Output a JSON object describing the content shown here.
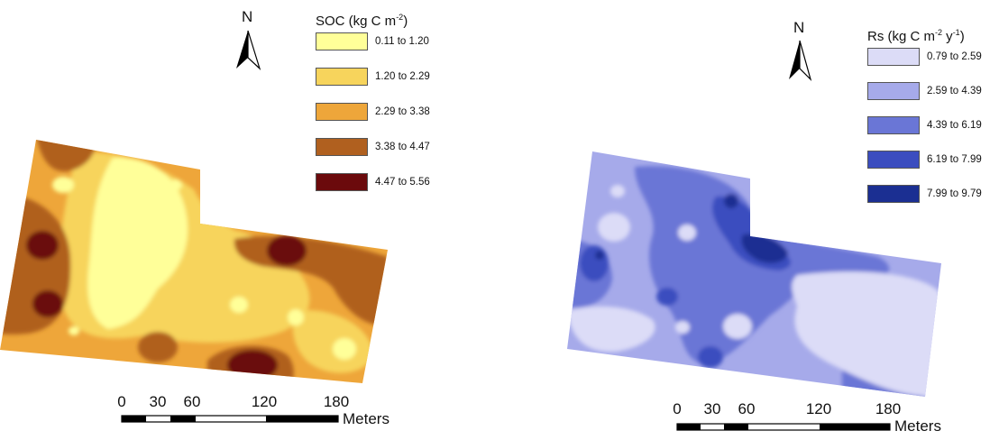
{
  "maps": [
    {
      "north_label": "N",
      "legend": {
        "title_main": "SOC (kg C m",
        "title_sup1": "-2",
        "title_mid": "",
        "title_sup2": "",
        "title_end": ")",
        "items": [
          {
            "label": "0.11 to 1.20",
            "color": "#ffff99"
          },
          {
            "label": "1.20 to 2.29",
            "color": "#f7d45c"
          },
          {
            "label": "2.29 to 3.38",
            "color": "#eea63a"
          },
          {
            "label": "3.38 to 4.47",
            "color": "#b0601f"
          },
          {
            "label": "4.47 to 5.56",
            "color": "#6b0a0c"
          }
        ]
      },
      "scale_bar": {
        "ticks": [
          "0",
          "30",
          "60",
          "120",
          "180"
        ],
        "unit": "Meters"
      }
    },
    {
      "north_label": "N",
      "legend": {
        "title_main": "Rs (kg C m",
        "title_sup1": "-2",
        "title_mid": " y",
        "title_sup2": "-1",
        "title_end": ")",
        "items": [
          {
            "label": "0.79 to 2.59",
            "color": "#dcdcf7"
          },
          {
            "label": "2.59 to 4.39",
            "color": "#a6aaea"
          },
          {
            "label": "4.39 to 6.19",
            "color": "#6a76d6"
          },
          {
            "label": "6.19 to 7.99",
            "color": "#3b4dbf"
          },
          {
            "label": "7.99 to 9.79",
            "color": "#1b2f92"
          }
        ]
      },
      "scale_bar": {
        "ticks": [
          "0",
          "30",
          "60",
          "120",
          "180"
        ],
        "unit": "Meters"
      }
    }
  ]
}
